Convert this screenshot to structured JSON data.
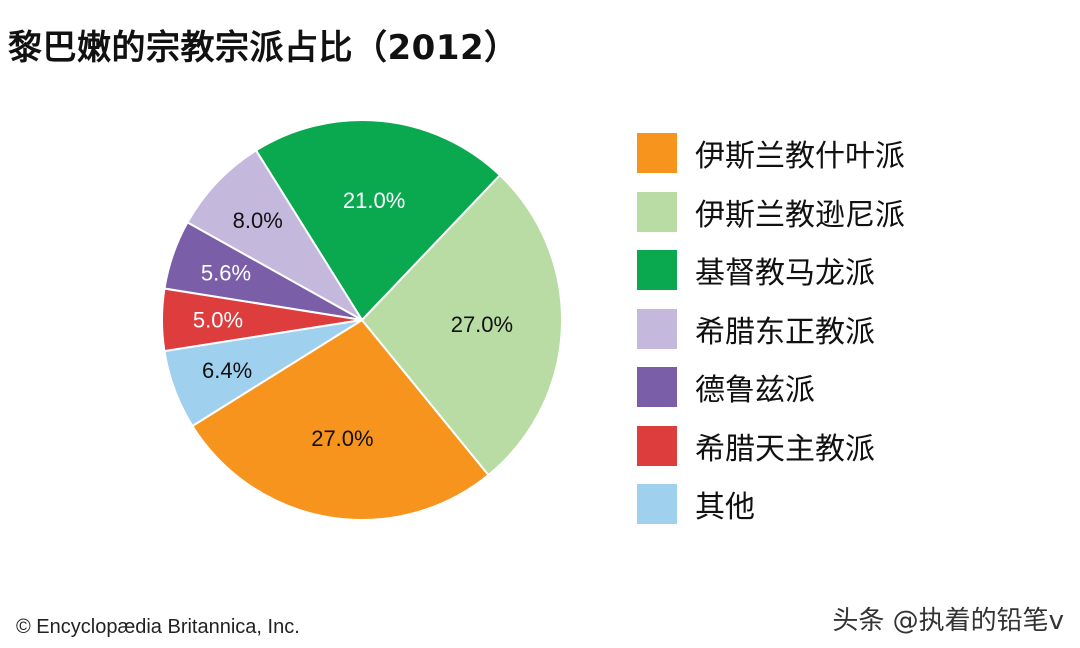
{
  "title": "黎巴嫩的宗教宗派占比（2012）",
  "chart_data": {
    "type": "pie",
    "title": "黎巴嫩的宗教宗派占比（2012）",
    "slices": [
      {
        "label": "伊斯兰教什叶派",
        "value": 27.0,
        "display": "27.0%",
        "color": "#f7941d"
      },
      {
        "label": "伊斯兰教逊尼派",
        "value": 27.0,
        "display": "27.0%",
        "color": "#b8dca3"
      },
      {
        "label": "基督教马龙派",
        "value": 21.0,
        "display": "21.0%",
        "color": "#0aa84f"
      },
      {
        "label": "希腊东正教派",
        "value": 8.0,
        "display": "8.0%",
        "color": "#c4b9dc"
      },
      {
        "label": "德鲁兹派",
        "value": 5.6,
        "display": "5.6%",
        "color": "#7a5ea8"
      },
      {
        "label": "希腊天主教派",
        "value": 5.0,
        "display": "5.0%",
        "color": "#dd3d3d"
      },
      {
        "label": "其他",
        "value": 6.4,
        "display": "6.4%",
        "color": "#9fd0ee"
      }
    ],
    "legend_position": "right"
  },
  "credit": "© Encyclopædia Britannica, Inc.",
  "watermark": "头条 @执着的铅笔v"
}
